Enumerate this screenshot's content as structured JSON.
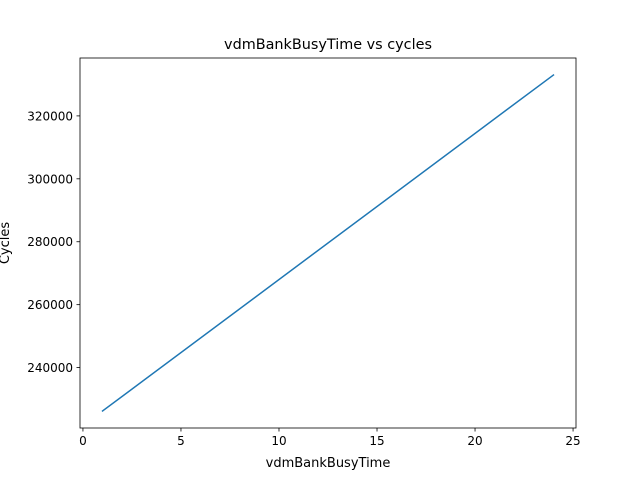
{
  "chart_data": {
    "type": "line",
    "title": "vdmBankBusyTime vs cycles",
    "xlabel": "vdmBankBusyTime",
    "ylabel": "Cycles",
    "xlim": [
      -0.15,
      25.15
    ],
    "ylim": [
      220800,
      338400
    ],
    "x_ticks": [
      0,
      5,
      10,
      15,
      20,
      25
    ],
    "y_ticks": [
      240000,
      260000,
      280000,
      300000,
      320000
    ],
    "x_tick_labels": [
      "0",
      "5",
      "10",
      "15",
      "20",
      "25"
    ],
    "y_tick_labels": [
      "240000",
      "260000",
      "280000",
      "300000",
      "320000"
    ],
    "grid": false,
    "series": [
      {
        "color": "#1f77b4",
        "x": [
          1,
          24
        ],
        "y": [
          226200,
          333000
        ]
      }
    ]
  }
}
